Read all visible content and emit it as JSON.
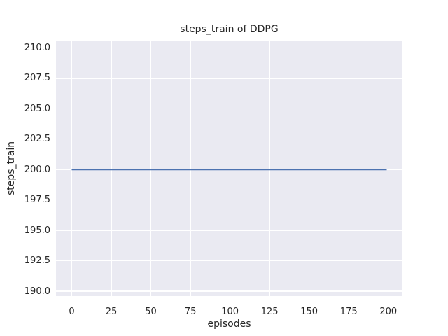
{
  "chart_data": {
    "type": "line",
    "title": "steps_train of DDPG",
    "xlabel": "episodes",
    "ylabel": "steps_train",
    "xlim": [
      -9.95,
      208.95
    ],
    "ylim": [
      189.6,
      210.6
    ],
    "grid": true,
    "legend": "none",
    "plot_bg": "#eaeaf2",
    "grid_color": "#ffffff",
    "text_color": "#262626",
    "figure_bg": "#ffffff",
    "x_ticks": [
      {
        "v": 0,
        "label": "0"
      },
      {
        "v": 25,
        "label": "25"
      },
      {
        "v": 50,
        "label": "50"
      },
      {
        "v": 75,
        "label": "75"
      },
      {
        "v": 100,
        "label": "100"
      },
      {
        "v": 125,
        "label": "125"
      },
      {
        "v": 150,
        "label": "150"
      },
      {
        "v": 175,
        "label": "175"
      },
      {
        "v": 200,
        "label": "200"
      }
    ],
    "y_ticks": [
      {
        "v": 190.0,
        "label": "190.0"
      },
      {
        "v": 192.5,
        "label": "192.5"
      },
      {
        "v": 195.0,
        "label": "195.0"
      },
      {
        "v": 197.5,
        "label": "197.5"
      },
      {
        "v": 200.0,
        "label": "200.0"
      },
      {
        "v": 202.5,
        "label": "202.5"
      },
      {
        "v": 205.0,
        "label": "205.0"
      },
      {
        "v": 207.5,
        "label": "207.5"
      },
      {
        "v": 210.0,
        "label": "210.0"
      }
    ],
    "series": [
      {
        "name": "steps_train",
        "color": "#4c72b0",
        "stroke_width": 2,
        "x": [
          0,
          199
        ],
        "y": [
          200,
          200
        ]
      }
    ]
  }
}
